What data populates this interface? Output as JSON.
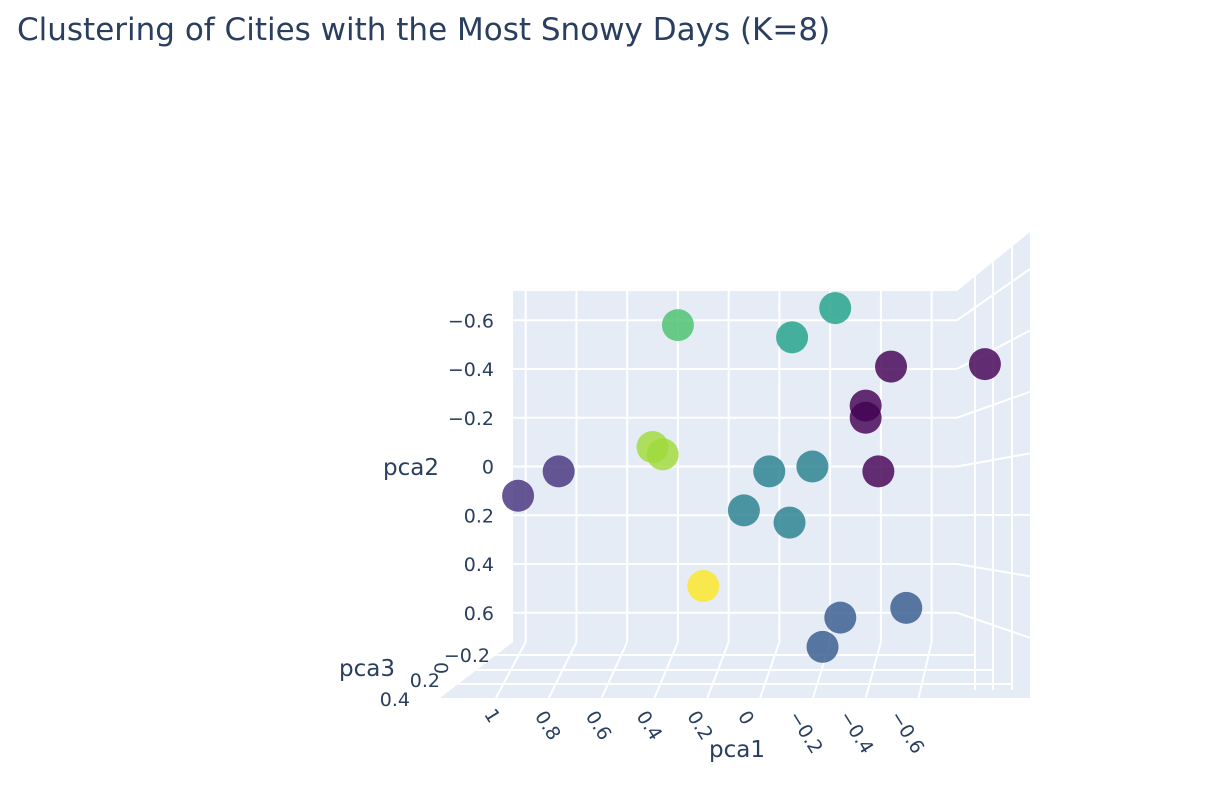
{
  "chart_data": {
    "type": "scatter3d",
    "title": "Clustering of Cities with the Most Snowy Days (K=8)",
    "axes": {
      "x": {
        "label": "pca1",
        "range": [
          -0.7,
          1.05
        ],
        "reversed": true,
        "ticks": [
          1,
          0.8,
          0.6,
          0.4,
          0.2,
          0,
          -0.2,
          -0.4,
          -0.6
        ],
        "tick_labels": [
          "1",
          "0.8",
          "0.6",
          "0.4",
          "0.2",
          "0",
          "−0.2",
          "−0.4",
          "−0.6"
        ]
      },
      "y": {
        "label": "pca2",
        "range": [
          -0.72,
          0.72
        ],
        "reversed": true,
        "ticks": [
          -0.6,
          -0.4,
          -0.2,
          0,
          0.2,
          0.4,
          0.6
        ],
        "tick_labels": [
          "−0.6",
          "−0.4",
          "−0.2",
          "0",
          "0.2",
          "0.4",
          "0.6"
        ]
      },
      "z": {
        "label": "pca3",
        "range": [
          -0.25,
          0.45
        ],
        "ticks": [
          -0.2,
          0,
          0.2,
          0.4
        ],
        "tick_labels": [
          "−0.2",
          "0",
          "0.2",
          "0.4"
        ]
      }
    },
    "grid": true,
    "colorscale": "viridis",
    "points": [
      {
        "x": 1.03,
        "y": 0.12,
        "z": 0.0,
        "cluster": 1
      },
      {
        "x": 0.87,
        "y": 0.02,
        "z": 0.0,
        "cluster": 1
      },
      {
        "x": 0.5,
        "y": -0.08,
        "z": 0.0,
        "cluster": 6
      },
      {
        "x": 0.46,
        "y": -0.05,
        "z": 0.0,
        "cluster": 6
      },
      {
        "x": 0.4,
        "y": -0.58,
        "z": 0.0,
        "cluster": 5
      },
      {
        "x": 0.3,
        "y": 0.49,
        "z": 0.0,
        "cluster": 7
      },
      {
        "x": 0.14,
        "y": 0.18,
        "z": 0.0,
        "cluster": 3
      },
      {
        "x": 0.04,
        "y": 0.02,
        "z": 0.0,
        "cluster": 3
      },
      {
        "x": -0.04,
        "y": 0.23,
        "z": 0.0,
        "cluster": 3
      },
      {
        "x": -0.13,
        "y": 0.0,
        "z": 0.0,
        "cluster": 3
      },
      {
        "x": -0.05,
        "y": -0.53,
        "z": 0.0,
        "cluster": 4
      },
      {
        "x": -0.22,
        "y": -0.65,
        "z": 0.0,
        "cluster": 4
      },
      {
        "x": -0.24,
        "y": 0.62,
        "z": 0.0,
        "cluster": 2
      },
      {
        "x": -0.17,
        "y": 0.74,
        "z": 0.0,
        "cluster": 2
      },
      {
        "x": -0.5,
        "y": 0.58,
        "z": 0.0,
        "cluster": 2
      },
      {
        "x": -0.34,
        "y": -0.25,
        "z": 0.0,
        "cluster": 0
      },
      {
        "x": -0.34,
        "y": -0.2,
        "z": 0.0,
        "cluster": 0
      },
      {
        "x": -0.39,
        "y": 0.02,
        "z": 0.0,
        "cluster": 0
      },
      {
        "x": -0.44,
        "y": -0.41,
        "z": 0.0,
        "cluster": 0
      },
      {
        "x": -0.81,
        "y": -0.42,
        "z": 0.0,
        "cluster": 0
      }
    ],
    "cluster_colors": [
      "#440154",
      "#46337e",
      "#365c8d",
      "#277f8e",
      "#1fa187",
      "#4ac16d",
      "#a0da39",
      "#fde725"
    ]
  }
}
